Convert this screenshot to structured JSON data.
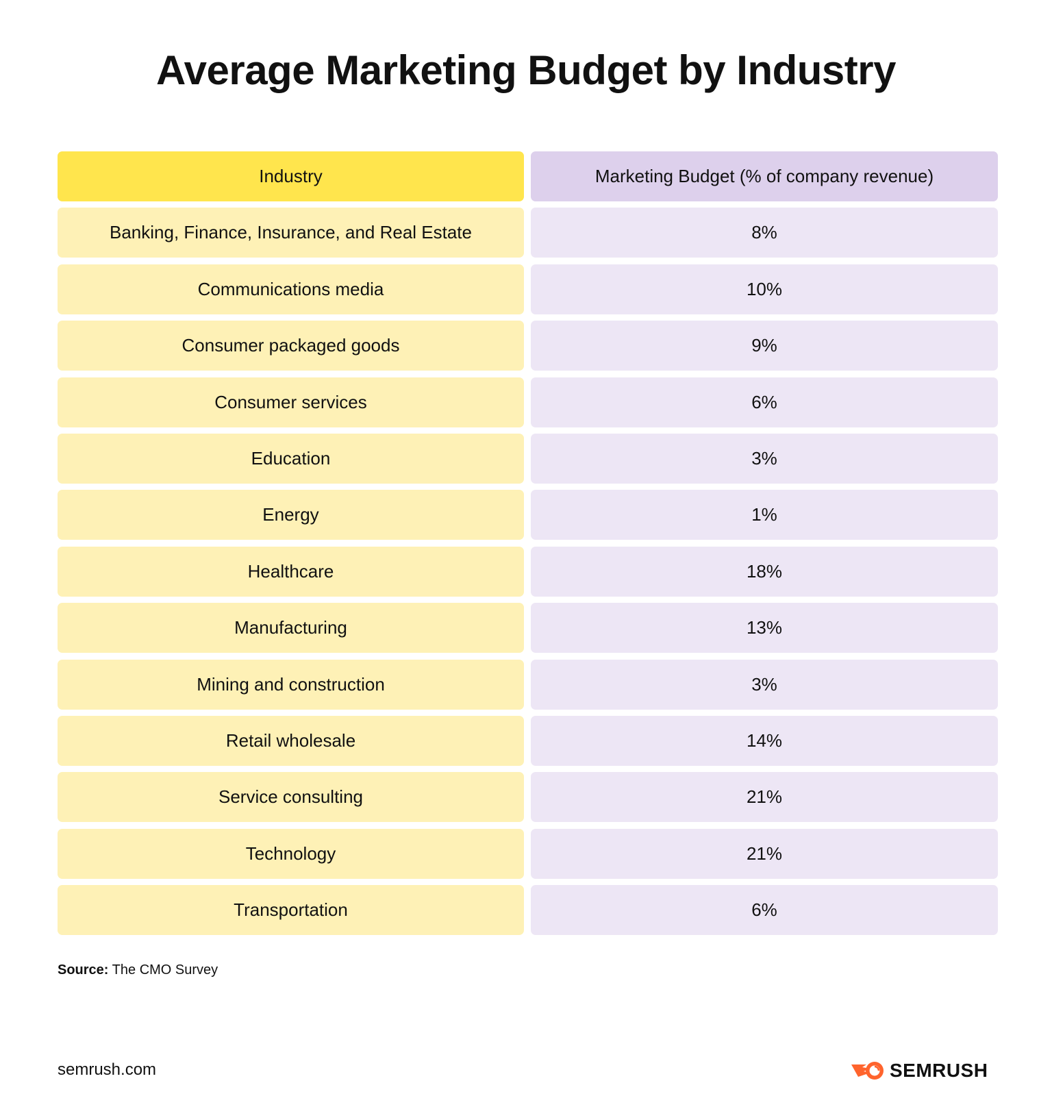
{
  "title": "Average Marketing Budget by Industry",
  "table": {
    "headers": [
      "Industry",
      "Marketing Budget (% of company revenue)"
    ],
    "rows": [
      {
        "industry": "Banking, Finance, Insurance, and Real Estate",
        "budget": "8%"
      },
      {
        "industry": "Communications media",
        "budget": "10%"
      },
      {
        "industry": "Consumer packaged goods",
        "budget": "9%"
      },
      {
        "industry": "Consumer services",
        "budget": "6%"
      },
      {
        "industry": "Education",
        "budget": "3%"
      },
      {
        "industry": "Energy",
        "budget": "1%"
      },
      {
        "industry": "Healthcare",
        "budget": "18%"
      },
      {
        "industry": "Manufacturing",
        "budget": "13%"
      },
      {
        "industry": "Mining and construction",
        "budget": "3%"
      },
      {
        "industry": "Retail wholesale",
        "budget": "14%"
      },
      {
        "industry": "Service consulting",
        "budget": "21%"
      },
      {
        "industry": "Technology",
        "budget": "21%"
      },
      {
        "industry": "Transportation",
        "budget": "6%"
      }
    ]
  },
  "source": {
    "label": "Source:",
    "text": "The CMO Survey"
  },
  "footer": {
    "site": "semrush.com",
    "logo_text": "SEMRUSH"
  },
  "colors": {
    "header_industry": "#ffe54d",
    "header_budget": "#ddd0ec",
    "row_industry": "#fef1b6",
    "row_budget": "#ede6f5",
    "logo_orange": "#ff642d"
  }
}
